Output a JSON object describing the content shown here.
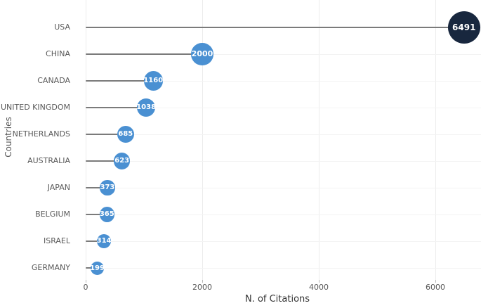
{
  "chart_data": {
    "type": "scatter",
    "variant": "lollipop-bubble",
    "title": "",
    "categories": [
      "USA",
      "CHINA",
      "CANADA",
      "UNITED KINGDOM",
      "NETHERLANDS",
      "AUSTRALIA",
      "JAPAN",
      "BELGIUM",
      "ISRAEL",
      "GERMANY"
    ],
    "values": [
      6491,
      2000,
      1160,
      1038,
      685,
      623,
      373,
      365,
      314,
      199
    ],
    "value_labels": [
      "6491",
      "2000",
      "1160",
      "1038",
      "685",
      "623",
      "373",
      "365",
      "314",
      "199"
    ],
    "xlabel": "N. of Citations",
    "ylabel": "Countries",
    "x_ticks": [
      0,
      2000,
      4000,
      6000
    ],
    "x_tick_labels": [
      "0",
      "2000",
      "4000",
      "6000"
    ],
    "xlim": [
      0,
      6780
    ],
    "grid": true,
    "legend": false,
    "highlight_index": 0,
    "colors": {
      "bubble": "#4a90d2",
      "highlight_bubble": "#18273e",
      "stem": "#7b7b7b",
      "value_text": "#ffffff",
      "gridline": "#ececec",
      "tick_text": "#555555",
      "axis_title_text": "#333333"
    }
  }
}
